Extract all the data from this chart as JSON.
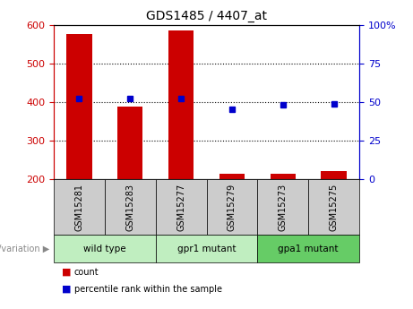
{
  "title": "GDS1485 / 4407_at",
  "samples": [
    "GSM15281",
    "GSM15283",
    "GSM15277",
    "GSM15279",
    "GSM15273",
    "GSM15275"
  ],
  "count_values": [
    577,
    388,
    585,
    213,
    213,
    220
  ],
  "percentile_values": [
    52,
    52,
    52,
    45,
    48,
    49
  ],
  "ylim_left": [
    200,
    600
  ],
  "ylim_right": [
    0,
    100
  ],
  "yticks_left": [
    200,
    300,
    400,
    500,
    600
  ],
  "yticks_right": [
    0,
    25,
    50,
    75,
    100
  ],
  "group_configs": [
    {
      "label": "wild type",
      "start": 0,
      "end": 2,
      "color": "#c0eec0"
    },
    {
      "label": "gpr1 mutant",
      "start": 2,
      "end": 4,
      "color": "#c0eec0"
    },
    {
      "label": "gpa1 mutant",
      "start": 4,
      "end": 6,
      "color": "#66cc66"
    }
  ],
  "bar_color": "#cc0000",
  "dot_color": "#0000cc",
  "bar_width": 0.5,
  "background_color": "#ffffff",
  "tick_color_left": "#cc0000",
  "tick_color_right": "#0000cc",
  "group_label": "genotype/variation",
  "legend_count_label": "count",
  "legend_percentile_label": "percentile rank within the sample",
  "sample_box_color": "#cccccc",
  "grid_lines": [
    300,
    400,
    500
  ]
}
